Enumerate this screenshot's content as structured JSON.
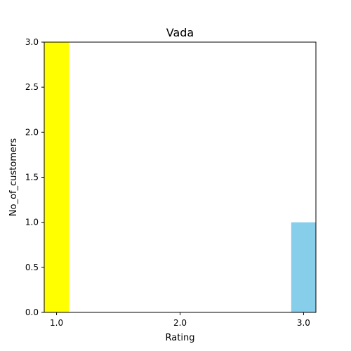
{
  "chart_data": {
    "type": "bar",
    "title": "Vada",
    "xlabel": "Rating",
    "ylabel": "No_of_customers",
    "bars": [
      {
        "x": 1.0,
        "value": 3,
        "color": "#ffff00"
      },
      {
        "x": 3.0,
        "value": 1,
        "color": "#87ceeb"
      }
    ],
    "x_ticks": [
      {
        "value": 1.0,
        "label": "1.0"
      },
      {
        "value": 2.0,
        "label": "2.0"
      },
      {
        "value": 3.0,
        "label": "3.0"
      }
    ],
    "y_ticks": [
      {
        "value": 0.0,
        "label": "0.0"
      },
      {
        "value": 0.5,
        "label": "0.5"
      },
      {
        "value": 1.0,
        "label": "1.0"
      },
      {
        "value": 1.5,
        "label": "1.5"
      },
      {
        "value": 2.0,
        "label": "2.0"
      },
      {
        "value": 2.5,
        "label": "2.5"
      },
      {
        "value": 3.0,
        "label": "3.0"
      }
    ],
    "xlim": [
      0.9,
      3.1
    ],
    "ylim": [
      0,
      3
    ],
    "bar_width": 0.2,
    "grid": false,
    "legend": "none"
  }
}
